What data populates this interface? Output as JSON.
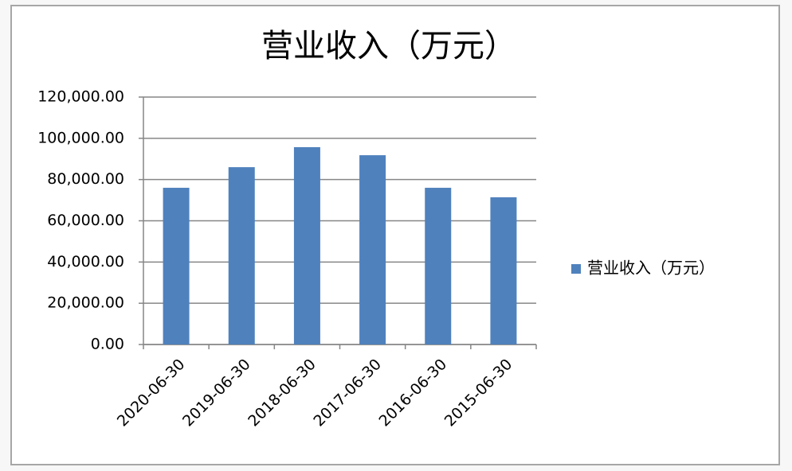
{
  "chart_data": {
    "type": "bar",
    "title": "营业收入（万元）",
    "categories": [
      "2020-06-30",
      "2019-06-30",
      "2018-06-30",
      "2017-06-30",
      "2016-06-30",
      "2015-06-30"
    ],
    "series": [
      {
        "name": "营业收入（万元）",
        "color": "#4f81bd",
        "values": [
          76000,
          86000,
          95700,
          91800,
          76000,
          71400
        ]
      }
    ],
    "ylim": [
      0,
      120000
    ],
    "yticks": [
      {
        "value": 0,
        "label": "0.00"
      },
      {
        "value": 20000,
        "label": "20,000.00"
      },
      {
        "value": 40000,
        "label": "40,000.00"
      },
      {
        "value": 60000,
        "label": "60,000.00"
      },
      {
        "value": 80000,
        "label": "80,000.00"
      },
      {
        "value": 100000,
        "label": "100,000.00"
      },
      {
        "value": 120000,
        "label": "120,000.00"
      }
    ],
    "grid": true,
    "legend": "right"
  }
}
